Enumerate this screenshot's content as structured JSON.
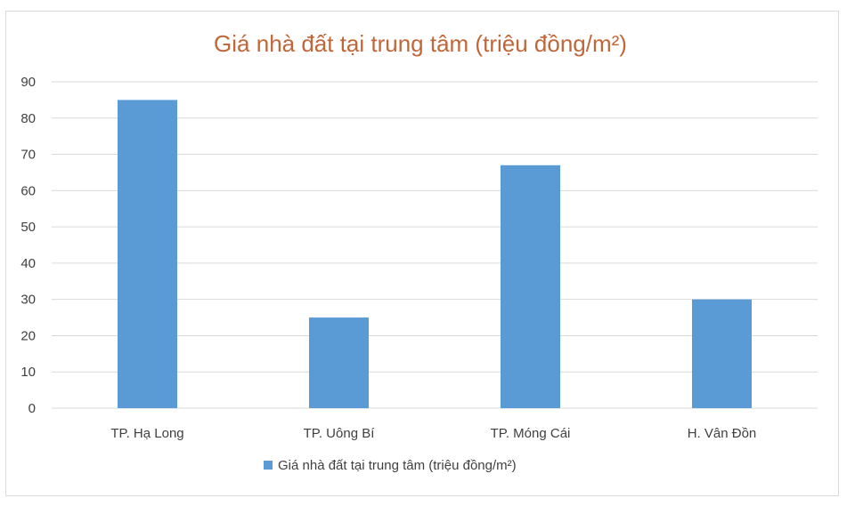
{
  "chart_data": {
    "type": "bar",
    "title": "Giá nhà đất tại trung tâm (triệu đồng/m²)",
    "categories": [
      "TP. Hạ Long",
      "TP. Uông Bí",
      "TP. Móng Cái",
      "H. Vân Đồn"
    ],
    "series": [
      {
        "name": "Giá nhà đất tại trung tâm (triệu đồng/m²)",
        "values": [
          85,
          25,
          67,
          30
        ],
        "color": "#5b9bd5"
      }
    ],
    "ylim": [
      0,
      90
    ],
    "yticks": [
      "0",
      "10",
      "20",
      "30",
      "40",
      "50",
      "60",
      "70",
      "80",
      "90"
    ],
    "grid": true,
    "legend_position": "bottom"
  }
}
